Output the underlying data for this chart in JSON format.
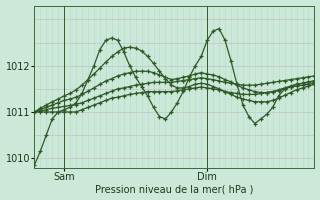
{
  "background_color": "#cce8d8",
  "plot_bg_color": "#cce8d8",
  "grid_color_v": "#b8d8c8",
  "grid_color_h": "#c0b8c8",
  "line_color": "#2d5a27",
  "xlabel": "Pression niveau de la mer( hPa )",
  "ylim": [
    1009.8,
    1013.3
  ],
  "yticks": [
    1010,
    1011,
    1012
  ],
  "xlim": [
    0,
    47
  ],
  "sam_x": 5,
  "dim_x": 29,
  "label_fontsize": 7,
  "series": [
    [
      1009.85,
      1010.15,
      1010.5,
      1010.85,
      1011.0,
      1011.05,
      1011.1,
      1011.2,
      1011.4,
      1011.7,
      1012.0,
      1012.35,
      1012.55,
      1012.6,
      1012.55,
      1012.3,
      1012.0,
      1011.75,
      1011.55,
      1011.35,
      1011.1,
      1010.9,
      1010.85,
      1011.0,
      1011.2,
      1011.45,
      1011.75,
      1012.0,
      1012.2,
      1012.55,
      1012.75,
      1012.8,
      1012.55,
      1012.1,
      1011.6,
      1011.15,
      1010.9,
      1010.75,
      1010.85,
      1010.95,
      1011.1,
      1011.35,
      1011.5,
      1011.55,
      1011.6,
      1011.62,
      1011.65,
      1011.65
    ],
    [
      1011.0,
      1011.0,
      1011.0,
      1011.0,
      1011.0,
      1011.0,
      1011.0,
      1011.0,
      1011.05,
      1011.1,
      1011.15,
      1011.2,
      1011.25,
      1011.3,
      1011.32,
      1011.35,
      1011.38,
      1011.4,
      1011.42,
      1011.44,
      1011.44,
      1011.44,
      1011.44,
      1011.44,
      1011.46,
      1011.48,
      1011.5,
      1011.52,
      1011.54,
      1011.52,
      1011.5,
      1011.48,
      1011.44,
      1011.42,
      1011.4,
      1011.38,
      1011.38,
      1011.38,
      1011.4,
      1011.42,
      1011.44,
      1011.46,
      1011.5,
      1011.54,
      1011.56,
      1011.58,
      1011.6,
      1011.62
    ],
    [
      1011.0,
      1011.02,
      1011.05,
      1011.08,
      1011.1,
      1011.12,
      1011.14,
      1011.16,
      1011.2,
      1011.25,
      1011.3,
      1011.35,
      1011.4,
      1011.45,
      1011.5,
      1011.52,
      1011.55,
      1011.58,
      1011.6,
      1011.62,
      1011.64,
      1011.64,
      1011.64,
      1011.64,
      1011.66,
      1011.68,
      1011.7,
      1011.72,
      1011.74,
      1011.72,
      1011.7,
      1011.67,
      1011.64,
      1011.62,
      1011.6,
      1011.58,
      1011.58,
      1011.58,
      1011.6,
      1011.62,
      1011.64,
      1011.66,
      1011.68,
      1011.7,
      1011.72,
      1011.74,
      1011.76,
      1011.78
    ],
    [
      1011.0,
      1011.05,
      1011.1,
      1011.15,
      1011.2,
      1011.25,
      1011.28,
      1011.32,
      1011.38,
      1011.45,
      1011.52,
      1011.6,
      1011.67,
      1011.72,
      1011.78,
      1011.82,
      1011.85,
      1011.88,
      1011.88,
      1011.88,
      1011.85,
      1011.8,
      1011.75,
      1011.7,
      1011.72,
      1011.75,
      1011.78,
      1011.82,
      1011.85,
      1011.82,
      1011.8,
      1011.76,
      1011.7,
      1011.65,
      1011.58,
      1011.52,
      1011.48,
      1011.44,
      1011.42,
      1011.42,
      1011.44,
      1011.48,
      1011.52,
      1011.56,
      1011.6,
      1011.62,
      1011.65,
      1011.68
    ],
    [
      1011.0,
      1011.08,
      1011.15,
      1011.22,
      1011.28,
      1011.35,
      1011.4,
      1011.48,
      1011.58,
      1011.7,
      1011.82,
      1011.95,
      1012.08,
      1012.2,
      1012.3,
      1012.38,
      1012.4,
      1012.38,
      1012.32,
      1012.2,
      1012.05,
      1011.88,
      1011.72,
      1011.58,
      1011.52,
      1011.52,
      1011.55,
      1011.6,
      1011.62,
      1011.6,
      1011.55,
      1011.5,
      1011.44,
      1011.38,
      1011.32,
      1011.28,
      1011.25,
      1011.22,
      1011.22,
      1011.22,
      1011.25,
      1011.3,
      1011.36,
      1011.42,
      1011.48,
      1011.52,
      1011.56,
      1011.6
    ]
  ]
}
